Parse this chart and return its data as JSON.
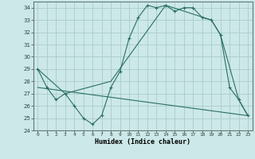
{
  "title": "",
  "xlabel": "Humidex (Indice chaleur)",
  "background_color": "#cce8e8",
  "grid_color": "#aacccc",
  "line_color": "#2a7060",
  "series1_x": [
    0,
    1,
    2,
    3,
    4,
    5,
    6,
    7,
    8,
    9,
    10,
    11,
    12,
    13,
    14,
    15,
    16,
    17,
    18,
    19,
    20,
    21,
    22,
    23
  ],
  "series1_y": [
    29,
    27.5,
    26.5,
    27,
    26,
    25,
    24.5,
    25.2,
    27.5,
    28.8,
    31.5,
    33.2,
    34.2,
    34.0,
    34.2,
    33.7,
    34.0,
    34.0,
    33.2,
    33.0,
    31.8,
    27.5,
    26.5,
    25.2
  ],
  "series2_x": [
    0,
    3,
    8,
    14,
    19,
    20,
    22,
    23
  ],
  "series2_y": [
    29,
    27,
    28,
    34.2,
    33.0,
    31.8,
    26.5,
    25.2
  ],
  "series3_x": [
    0,
    23
  ],
  "series3_y": [
    27.5,
    25.2
  ],
  "ylim": [
    24,
    34.5
  ],
  "xlim": [
    -0.5,
    23.5
  ],
  "yticks": [
    24,
    25,
    26,
    27,
    28,
    29,
    30,
    31,
    32,
    33,
    34
  ],
  "xticks": [
    0,
    1,
    2,
    3,
    4,
    5,
    6,
    7,
    8,
    9,
    10,
    11,
    12,
    13,
    14,
    15,
    16,
    17,
    18,
    19,
    20,
    21,
    22,
    23
  ]
}
